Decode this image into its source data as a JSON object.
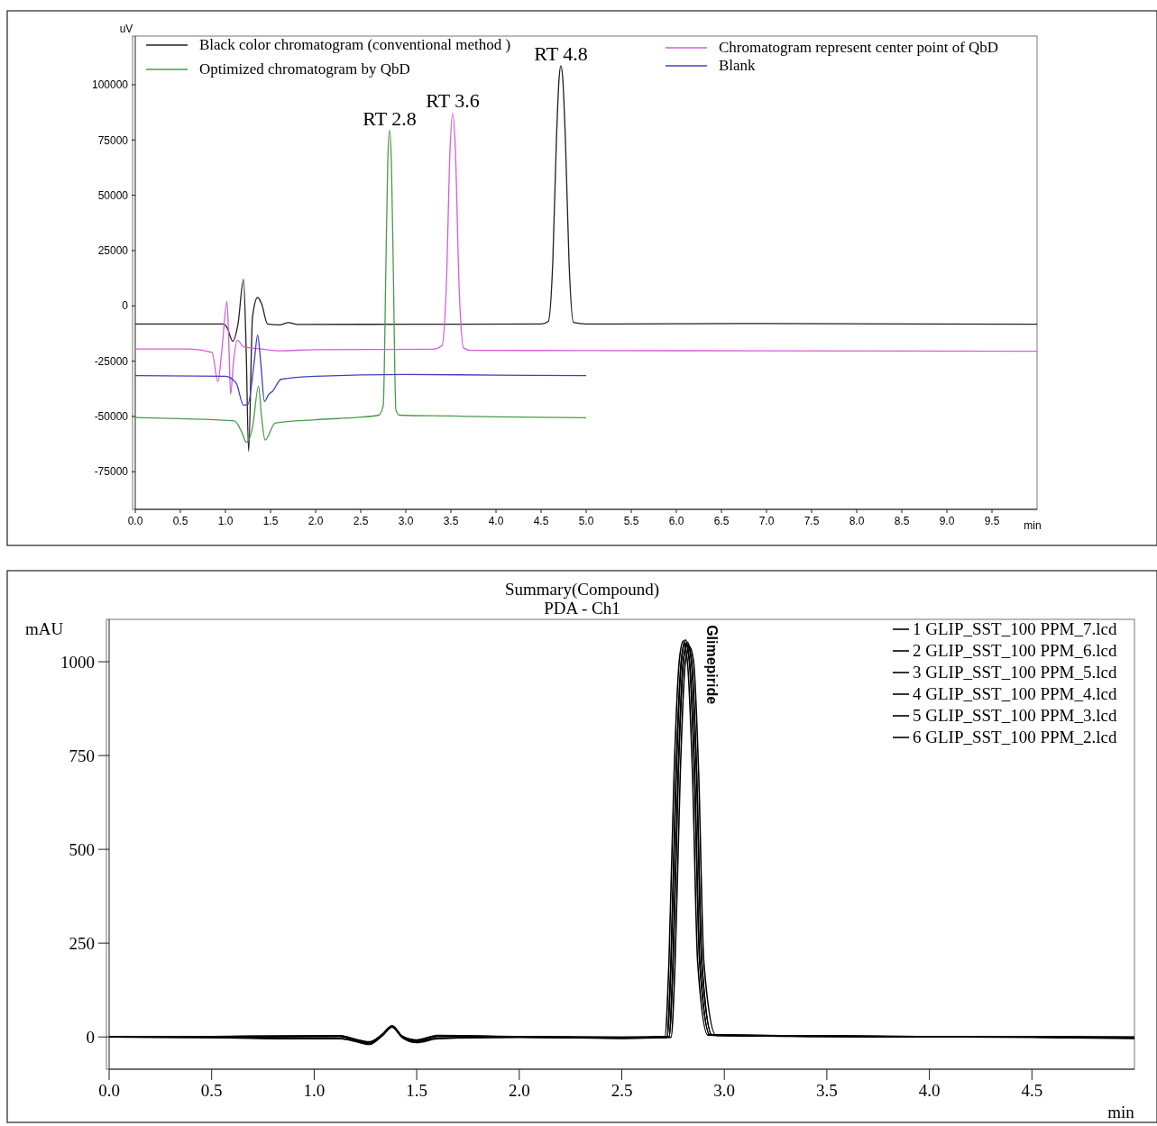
{
  "chart_data": [
    {
      "type": "line",
      "xlabel": "min",
      "ylabel": "uV",
      "xlim": [
        0,
        10
      ],
      "ylim": [
        -92000,
        122000
      ],
      "xticks": [
        {
          "value": 0,
          "label": "0.0"
        },
        {
          "value": 0.5,
          "label": "0.5"
        },
        {
          "value": 1,
          "label": "1.0"
        },
        {
          "value": 1.5,
          "label": "1.5"
        },
        {
          "value": 2,
          "label": "2.0"
        },
        {
          "value": 2.5,
          "label": "2.5"
        },
        {
          "value": 3,
          "label": "3.0"
        },
        {
          "value": 3.5,
          "label": "3.5"
        },
        {
          "value": 4,
          "label": "4.0"
        },
        {
          "value": 4.5,
          "label": "4.5"
        },
        {
          "value": 5,
          "label": "5.0"
        },
        {
          "value": 5.5,
          "label": "5.5"
        },
        {
          "value": 6,
          "label": "6.0"
        },
        {
          "value": 6.5,
          "label": "6.5"
        },
        {
          "value": 7,
          "label": "7.0"
        },
        {
          "value": 7.5,
          "label": "7.5"
        },
        {
          "value": 8,
          "label": "8.0"
        },
        {
          "value": 8.5,
          "label": "8.5"
        },
        {
          "value": 9,
          "label": "9.0"
        },
        {
          "value": 9.5,
          "label": "9.5"
        }
      ],
      "yticks": [
        -75000,
        -50000,
        -25000,
        0,
        25000,
        50000,
        75000,
        100000
      ],
      "legend": "top",
      "grid": false,
      "annotations": [
        {
          "text": "RT 2.8",
          "x": 2.82,
          "y": 79400
        },
        {
          "text": "RT 3.6",
          "x": 3.52,
          "y": 87200
        },
        {
          "text": "RT 4.8",
          "x": 4.72,
          "y": 108600
        }
      ],
      "series": [
        {
          "name": "Black color chromatogram (conventional method )",
          "color": "#202020",
          "x": [
            0,
            0.98,
            1.02,
            1.08,
            1.14,
            1.2,
            1.23,
            1.257,
            1.3,
            1.357,
            1.4,
            1.467,
            1.6,
            1.7,
            1.8,
            3.0,
            4.5,
            4.58,
            4.63,
            4.67,
            4.7,
            4.72,
            4.74,
            4.77,
            4.81,
            4.86,
            5.0,
            7.0,
            10.0
          ],
          "values": [
            -8200,
            -8200,
            -10000,
            -16000,
            -8000,
            12000,
            -20000,
            -65800,
            -5000,
            3800,
            1000,
            -8200,
            -8600,
            -7600,
            -8400,
            -8300,
            -8200,
            -7000,
            20000,
            75000,
            103000,
            108600,
            103000,
            75000,
            20000,
            -7500,
            -8200,
            -8000,
            -8300
          ]
        },
        {
          "name": "Optimized chromatogram by QbD",
          "color": "#4a9a4a",
          "x": [
            0,
            0.5,
            1.1,
            1.18,
            1.233,
            1.3,
            1.367,
            1.4,
            1.44,
            1.55,
            2.0,
            2.5,
            2.7,
            2.75,
            2.78,
            2.8,
            2.82,
            2.84,
            2.86,
            2.89,
            2.93,
            3.5,
            4.0,
            5.0
          ],
          "values": [
            -50500,
            -51000,
            -52000,
            -57000,
            -61700,
            -55000,
            -36300,
            -50000,
            -60700,
            -53000,
            -51500,
            -50300,
            -49400,
            -45000,
            20000,
            65000,
            79400,
            65000,
            20000,
            -47000,
            -49400,
            -49800,
            -50200,
            -50600
          ]
        },
        {
          "name": "Chromatogram represent center point of QbD",
          "color": "#d65ed6",
          "x": [
            0,
            0.6,
            0.85,
            0.917,
            0.96,
            1.017,
            1.04,
            1.057,
            1.09,
            1.133,
            1.2,
            1.4,
            1.6,
            2.0,
            3.3,
            3.4,
            3.45,
            3.49,
            3.52,
            3.55,
            3.59,
            3.64,
            3.72,
            5,
            7,
            10
          ],
          "values": [
            -19500,
            -19500,
            -21000,
            -34200,
            -20000,
            2000,
            -20000,
            -40000,
            -25000,
            -15500,
            -18500,
            -19500,
            -20300,
            -19800,
            -19600,
            -18000,
            10000,
            70000,
            87200,
            70000,
            10000,
            -19000,
            -20100,
            -20200,
            -20300,
            -20500
          ]
        },
        {
          "name": "Blank",
          "color": "#4040c0",
          "x": [
            0,
            1.0,
            1.12,
            1.2,
            1.25,
            1.32,
            1.357,
            1.39,
            1.433,
            1.48,
            1.52,
            1.617,
            2.0,
            3.0,
            4.0,
            5.0
          ],
          "values": [
            -31500,
            -31800,
            -35000,
            -44900,
            -44500,
            -25000,
            -13200,
            -25000,
            -43200,
            -40000,
            -38700,
            -33200,
            -31800,
            -31000,
            -31300,
            -31500
          ]
        }
      ]
    },
    {
      "type": "line",
      "title": "Summary(Compound)",
      "subtitle": "PDA - Ch1",
      "xlabel": "min",
      "ylabel": "mAU",
      "xlim": [
        0,
        5
      ],
      "ylim": [
        -86,
        1113
      ],
      "xticks": [
        {
          "value": 0,
          "label": "0.0"
        },
        {
          "value": 0.5,
          "label": "0.5"
        },
        {
          "value": 1,
          "label": "1.0"
        },
        {
          "value": 1.5,
          "label": "1.5"
        },
        {
          "value": 2,
          "label": "2.0"
        },
        {
          "value": 2.5,
          "label": "2.5"
        },
        {
          "value": 3,
          "label": "3.0"
        },
        {
          "value": 3.5,
          "label": "3.5"
        },
        {
          "value": 4,
          "label": "4.0"
        },
        {
          "value": 4.5,
          "label": "4.5"
        }
      ],
      "yticks": [
        0,
        250,
        500,
        750,
        1000
      ],
      "legend": "top right",
      "grid": false,
      "annotations": [
        {
          "text": "Glimepiride",
          "x": 2.82,
          "y": 1055
        }
      ],
      "series": [
        {
          "name": "1 GLIP_SST_100 PPM_7.lcd",
          "color": "#000000",
          "x": [
            0,
            0.5,
            1.0,
            1.13,
            1.2,
            1.27,
            1.33,
            1.38,
            1.43,
            1.5,
            1.6,
            2.0,
            2.5,
            2.71,
            2.73,
            2.755,
            2.78,
            2.8,
            2.82,
            2.845,
            2.87,
            2.92,
            3.5,
            4.0,
            4.5,
            5.0
          ],
          "values": [
            0,
            0,
            2,
            2,
            -8,
            -15,
            5,
            28,
            0,
            -10,
            2,
            0,
            -2,
            0,
            200,
            700,
            1000,
            1055,
            1000,
            700,
            200,
            5,
            2,
            0,
            0,
            -2
          ]
        },
        {
          "name": "2 GLIP_SST_100 PPM_6.lcd",
          "color": "#000000",
          "x": [
            0,
            0.5,
            1.0,
            1.13,
            1.2,
            1.27,
            1.33,
            1.38,
            1.43,
            1.5,
            1.6,
            2.0,
            2.5,
            2.72,
            2.74,
            2.765,
            2.79,
            2.81,
            2.83,
            2.855,
            2.88,
            2.93,
            3.5,
            4.0,
            4.5,
            5.0
          ],
          "values": [
            0,
            -2,
            -5,
            -5,
            -12,
            -20,
            3,
            27,
            -2,
            -15,
            -5,
            0,
            -4,
            -2,
            200,
            700,
            1000,
            1050,
            1000,
            700,
            200,
            5,
            2,
            0,
            0,
            -3
          ]
        },
        {
          "name": "3 GLIP_SST_100 PPM_5.lcd",
          "color": "#000000",
          "x": [
            0,
            0.5,
            1.0,
            1.13,
            1.2,
            1.27,
            1.33,
            1.38,
            1.43,
            1.5,
            1.6,
            2.0,
            2.5,
            2.72,
            2.74,
            2.765,
            2.79,
            2.81,
            2.83,
            2.855,
            2.88,
            2.93,
            3.5,
            4.0,
            4.5,
            5.0
          ],
          "values": [
            0,
            1,
            2,
            2,
            -7,
            -14,
            5,
            28,
            1,
            -9,
            3,
            0,
            -2,
            0,
            200,
            700,
            1000,
            1058,
            1000,
            700,
            200,
            6,
            3,
            1,
            0,
            -1
          ]
        },
        {
          "name": "4 GLIP_SST_100 PPM_4.lcd",
          "color": "#000000",
          "x": [
            0,
            0.5,
            1.0,
            1.13,
            1.2,
            1.27,
            1.33,
            1.38,
            1.43,
            1.5,
            1.6,
            2.0,
            2.5,
            2.73,
            2.75,
            2.775,
            2.8,
            2.82,
            2.84,
            2.865,
            2.89,
            2.94,
            3.5,
            4.0,
            4.5,
            5.0
          ],
          "values": [
            0,
            0,
            1,
            2,
            -8,
            -16,
            4,
            29,
            0,
            -11,
            2,
            0,
            -1,
            0,
            200,
            700,
            1000,
            1052,
            1000,
            700,
            200,
            5,
            2,
            0,
            0,
            -2
          ]
        },
        {
          "name": "5 GLIP_SST_100 PPM_3.lcd",
          "color": "#000000",
          "x": [
            0,
            0.5,
            1.0,
            1.13,
            1.2,
            1.27,
            1.33,
            1.38,
            1.43,
            1.5,
            1.6,
            2.0,
            2.5,
            2.73,
            2.75,
            2.775,
            2.8,
            2.82,
            2.84,
            2.865,
            2.89,
            2.94,
            3.5,
            4.0,
            4.5,
            5.0
          ],
          "values": [
            0,
            1,
            3,
            3,
            -6,
            -13,
            6,
            30,
            2,
            -8,
            4,
            1,
            -1,
            1,
            200,
            700,
            1000,
            1046,
            1000,
            700,
            200,
            6,
            3,
            1,
            1,
            0
          ]
        },
        {
          "name": "6 GLIP_SST_100 PPM_2.lcd",
          "color": "#000000",
          "x": [
            0,
            0.5,
            1.0,
            1.13,
            1.2,
            1.27,
            1.33,
            1.38,
            1.43,
            1.5,
            1.6,
            2.0,
            2.5,
            2.74,
            2.76,
            2.785,
            2.81,
            2.83,
            2.85,
            2.875,
            2.9,
            2.96,
            3.5,
            4.0,
            4.5,
            5.0
          ],
          "values": [
            0,
            -1,
            -4,
            -4,
            -10,
            -18,
            2,
            26,
            -1,
            -13,
            -3,
            -1,
            -3,
            -1,
            200,
            700,
            1000,
            1040,
            1000,
            700,
            200,
            4,
            1,
            0,
            -1,
            -4
          ]
        }
      ]
    }
  ]
}
